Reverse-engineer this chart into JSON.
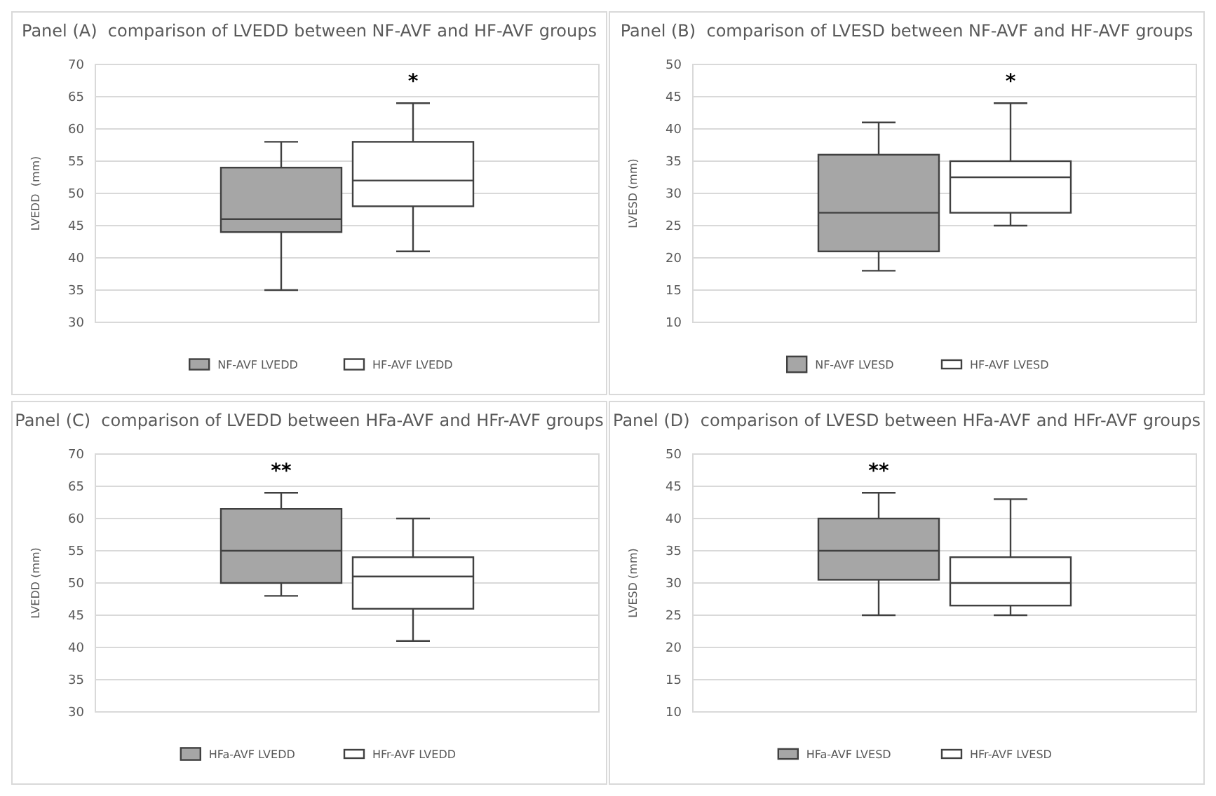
{
  "chart_data": [
    {
      "type": "box",
      "title": "Panel (A)  comparison of LVEDD between NF-AVF and HF-AVF groups",
      "ylabel": "LVEDD  (mm)",
      "categories": [
        null
      ],
      "ylim": [
        30,
        70
      ],
      "yticks": [
        30,
        35,
        40,
        45,
        50,
        55,
        60,
        65,
        70
      ],
      "grid": "y",
      "legend": "bottom",
      "series": [
        {
          "name": "NF-AVF LVEDD",
          "color": "#a6a6a6",
          "boxes": [
            {
              "low": 35,
              "q1": 44,
              "median": 46,
              "q3": 54,
              "high": 58
            }
          ]
        },
        {
          "name": "HF-AVF LVEDD",
          "color": "#ffffff",
          "boxes": [
            {
              "low": 41,
              "q1": 48,
              "median": 52,
              "q3": 58,
              "high": 64
            }
          ]
        }
      ],
      "annotations": [
        "*"
      ]
    },
    {
      "type": "box",
      "title": "Panel (B)  comparison of LVESD between NF-AVF and HF-AVF groups",
      "ylabel": "LVESD (mm)",
      "categories": [
        null
      ],
      "ylim": [
        10,
        50
      ],
      "yticks": [
        10,
        15,
        20,
        25,
        30,
        35,
        40,
        45,
        50
      ],
      "grid": "y",
      "legend": "bottom",
      "series": [
        {
          "name": "NF-AVF LVESD",
          "color": "#a6a6a6",
          "boxes": [
            {
              "low": 18,
              "q1": 21,
              "median": 27,
              "q3": 36,
              "high": 41
            }
          ]
        },
        {
          "name": "HF-AVF LVESD",
          "color": "#ffffff",
          "boxes": [
            {
              "low": 25,
              "q1": 27,
              "median": 32.5,
              "q3": 35,
              "high": 44
            }
          ]
        }
      ],
      "annotations": [
        "*"
      ]
    },
    {
      "type": "box",
      "title": "Panel (C)  comparison of LVEDD between HFa-AVF and HFr-AVF groups",
      "ylabel": "LVEDD (mm)",
      "categories": [
        null
      ],
      "ylim": [
        30,
        70
      ],
      "yticks": [
        30,
        35,
        40,
        45,
        50,
        55,
        60,
        65,
        70
      ],
      "grid": "y",
      "legend": "bottom",
      "series": [
        {
          "name": "HFa-AVF LVEDD",
          "color": "#a6a6a6",
          "boxes": [
            {
              "low": 48,
              "q1": 50,
              "median": 55,
              "q3": 61.5,
              "high": 64
            }
          ]
        },
        {
          "name": "HFr-AVF LVEDD",
          "color": "#ffffff",
          "boxes": [
            {
              "low": 41,
              "q1": 46,
              "median": 51,
              "q3": 54,
              "high": 60
            }
          ]
        }
      ],
      "annotations": [
        "**"
      ]
    },
    {
      "type": "box",
      "title": "Panel (D)  comparison of LVESD between HFa-AVF and HFr-AVF groups",
      "ylabel": "LVESD (mm)",
      "categories": [
        null
      ],
      "ylim": [
        10,
        50
      ],
      "yticks": [
        10,
        15,
        20,
        25,
        30,
        35,
        40,
        45,
        50
      ],
      "grid": "y",
      "legend": "bottom",
      "series": [
        {
          "name": "HFa-AVF LVESD",
          "color": "#a6a6a6",
          "boxes": [
            {
              "low": 25,
              "q1": 30.5,
              "median": 35,
              "q3": 40,
              "high": 44
            }
          ]
        },
        {
          "name": "HFr-AVF LVESD",
          "color": "#ffffff",
          "boxes": [
            {
              "low": 25,
              "q1": 26.5,
              "median": 30,
              "q3": 34,
              "high": 43
            }
          ]
        }
      ],
      "annotations": [
        "**"
      ]
    }
  ]
}
